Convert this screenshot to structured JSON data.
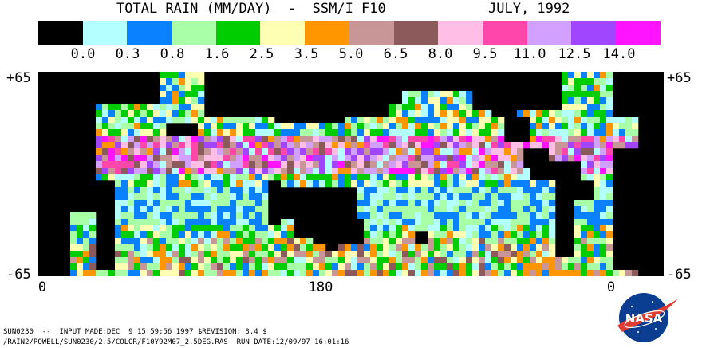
{
  "title": {
    "part1": "TOTAL RAIN (MM/DAY)  -  SSM/I F10",
    "part2": "JULY, 1992"
  },
  "legend": {
    "colors": [
      "#000000",
      "#b4ffff",
      "#0a82ff",
      "#a8ffa8",
      "#00cd00",
      "#ffffb4",
      "#ff9600",
      "#c89696",
      "#8c5a5a",
      "#ffbee6",
      "#ff46aa",
      "#d2a0ff",
      "#a046ff",
      "#ff14ff"
    ],
    "labels": [
      "0.0",
      "0.3",
      "0.8",
      "1.6",
      "2.5",
      "3.5",
      "5.0",
      "6.5",
      "8.0",
      "9.5",
      "11.0",
      "12.5",
      "14.0"
    ]
  },
  "axes": {
    "lat_top": "+65",
    "lat_bottom": "-65",
    "lon_labels": [
      "0",
      "180",
      "0"
    ]
  },
  "footer": {
    "line1": "SUN0230  --  INPUT MADE:DEC  9 15:59:56 1997 $REVISION: 3.4 $",
    "line2": "/RAIN2/POWELL/SUN0230/2.5/COLOR/F10Y92M07_2.5DEG.RAS  RUN DATE:12/09/97 16:01:16"
  },
  "logo": {
    "text": "NASA",
    "icon": "nasa-meatball-icon"
  }
}
